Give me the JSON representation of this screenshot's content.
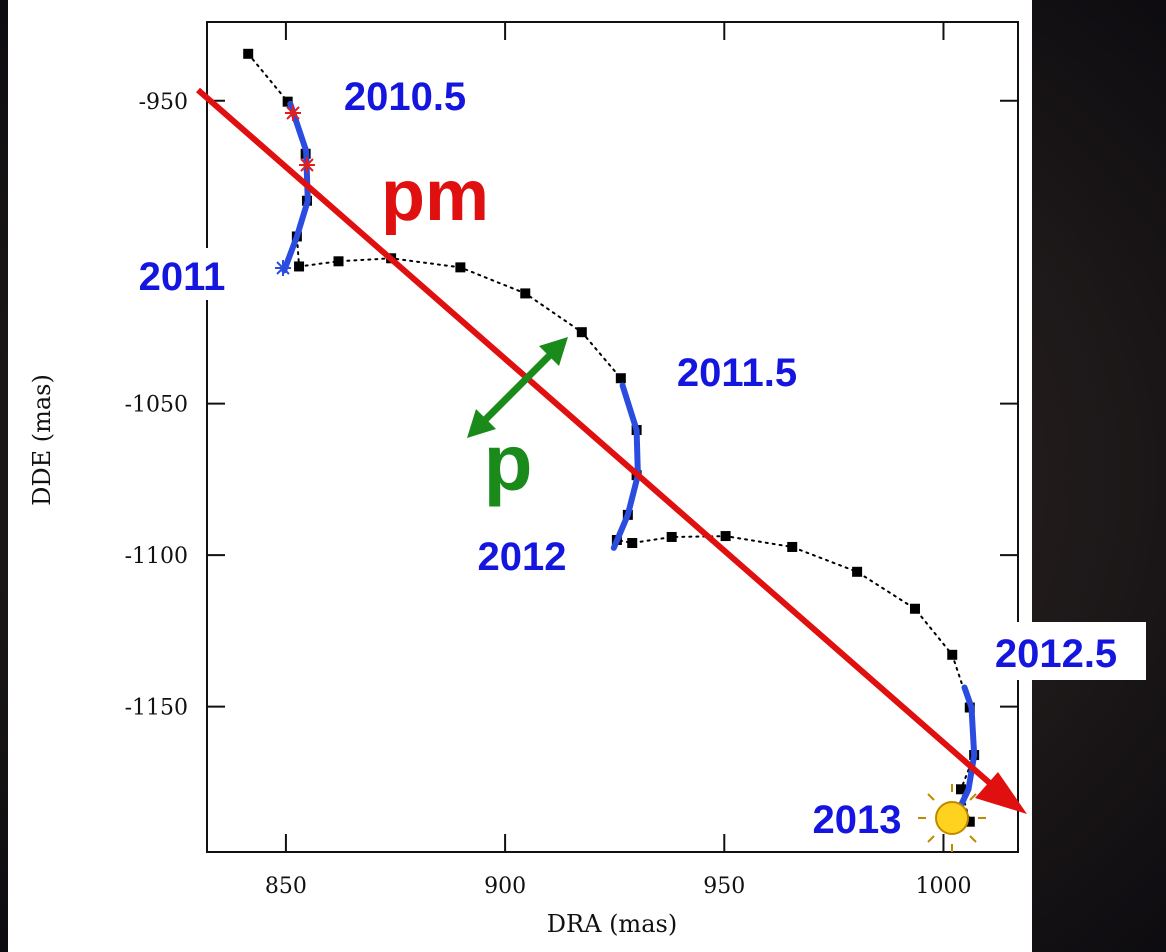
{
  "chart_data": {
    "type": "line",
    "xlabel": "DRA (mas)",
    "ylabel": "DDE (mas)",
    "xlim": [
      832,
      1017
    ],
    "ylim": [
      -1198,
      -924
    ],
    "xticks": [
      850,
      900,
      950,
      1000
    ],
    "yticks": [
      -950,
      -1050,
      -1100,
      -1150
    ],
    "series": [
      {
        "color": "#000000",
        "style": "dotted",
        "marker": "square",
        "x": [
          841.4,
          850.4,
          854.5,
          854.8,
          852.5,
          853.0,
          862.0,
          874.0,
          889.8,
          904.6,
          917.5,
          926.4,
          930.0,
          930.0,
          928.0,
          925.5,
          929.0,
          938.0,
          950.3,
          965.5,
          980.3,
          993.5,
          1002.0,
          1006.0,
          1007.0,
          1004.0,
          1006.0
        ],
        "values": [
          -934.5,
          -950.3,
          -967.5,
          -983.0,
          -994.8,
          -1004.7,
          -1003.0,
          -1002.0,
          -1005.0,
          -1013.6,
          -1026.4,
          -1041.6,
          -1058.7,
          -1073.6,
          -1086.7,
          -1095.0,
          -1096.0,
          -1094.0,
          -1093.7,
          -1097.3,
          -1105.5,
          -1117.7,
          -1132.9,
          -1150.3,
          -1166.0,
          -1177.3,
          -1188.0
        ]
      },
      {
        "color": "#2a4de0",
        "style": "solid",
        "x": [
          851.0,
          854.6,
          855.0,
          852.5,
          849.6
        ],
        "values": [
          -951.0,
          -966.5,
          -983.0,
          -994.8,
          -1006.0
        ]
      },
      {
        "color": "#2a4de0",
        "style": "solid",
        "x": [
          926.8,
          930.0,
          930.3,
          928.0,
          924.8
        ],
        "values": [
          -1044.0,
          -1058.7,
          -1073.6,
          -1086.7,
          -1097.6
        ]
      },
      {
        "color": "#2a4de0",
        "style": "solid",
        "x": [
          1004.8,
          1006.4,
          1007.0,
          1005.7,
          1003.0
        ],
        "values": [
          -1143.7,
          -1150.3,
          -1166.0,
          -1177.3,
          -1185.6
        ]
      }
    ],
    "annotations": [
      "2010.5",
      "2011",
      "2011.5",
      "2012",
      "2012.5",
      "2013",
      "pm",
      "p"
    ]
  }
}
